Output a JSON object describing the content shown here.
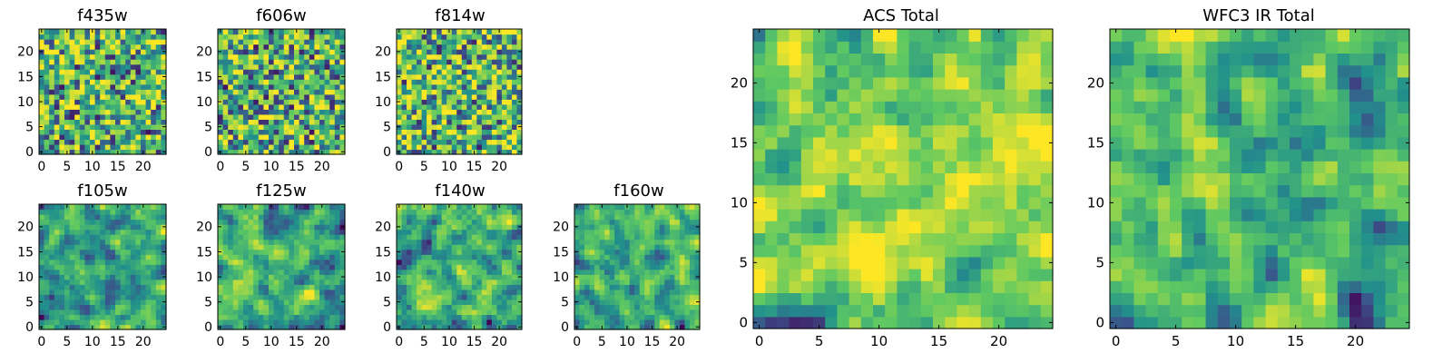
{
  "figure": {
    "background": "#ffffff",
    "colormap": "viridis",
    "colormap_stops": [
      "#440154",
      "#3b528b",
      "#21918c",
      "#5ec962",
      "#fde725"
    ]
  },
  "chart_data": [
    {
      "type": "heatmap",
      "title": "f435w",
      "grid": [
        25,
        25
      ],
      "xlim": [
        0,
        24
      ],
      "ylim": [
        0,
        24
      ],
      "xticks": [
        0,
        5,
        10,
        15,
        20
      ],
      "yticks": [
        0,
        5,
        10,
        15,
        20
      ],
      "tick_labels_x": [
        "0",
        "5",
        "10",
        "15",
        "20"
      ],
      "tick_labels_y": [
        "0",
        "5",
        "10",
        "15",
        "20"
      ],
      "pattern": "noisy, fine-grained",
      "seed": 11,
      "smooth": 0,
      "bias": 0.05
    },
    {
      "type": "heatmap",
      "title": "f606w",
      "grid": [
        25,
        25
      ],
      "xlim": [
        0,
        24
      ],
      "ylim": [
        0,
        24
      ],
      "xticks": [
        0,
        5,
        10,
        15,
        20
      ],
      "yticks": [
        0,
        5,
        10,
        15,
        20
      ],
      "tick_labels_x": [
        "0",
        "5",
        "10",
        "15",
        "20"
      ],
      "tick_labels_y": [
        "0",
        "5",
        "10",
        "15",
        "20"
      ],
      "pattern": "noisy, fine-grained",
      "seed": 23,
      "smooth": 0,
      "bias": 0.05
    },
    {
      "type": "heatmap",
      "title": "f814w",
      "grid": [
        25,
        25
      ],
      "xlim": [
        0,
        24
      ],
      "ylim": [
        0,
        24
      ],
      "xticks": [
        0,
        5,
        10,
        15,
        20
      ],
      "yticks": [
        0,
        5,
        10,
        15,
        20
      ],
      "tick_labels_x": [
        "0",
        "5",
        "10",
        "15",
        "20"
      ],
      "tick_labels_y": [
        "0",
        "5",
        "10",
        "15",
        "20"
      ],
      "pattern": "noisy, fine-grained",
      "seed": 37,
      "smooth": 0,
      "bias": 0.08
    },
    {
      "type": "heatmap",
      "title": "f105w",
      "grid": [
        25,
        25
      ],
      "xlim": [
        0,
        24
      ],
      "ylim": [
        0,
        24
      ],
      "xticks": [
        0,
        5,
        10,
        15,
        20
      ],
      "yticks": [
        0,
        5,
        10,
        15,
        20
      ],
      "tick_labels_x": [
        "0",
        "5",
        "10",
        "15",
        "20"
      ],
      "tick_labels_y": [
        "0",
        "5",
        "10",
        "15",
        "20"
      ],
      "pattern": "smooth blobs",
      "seed": 41,
      "smooth": 1,
      "bias": 0.0
    },
    {
      "type": "heatmap",
      "title": "f125w",
      "grid": [
        25,
        25
      ],
      "xlim": [
        0,
        24
      ],
      "ylim": [
        0,
        24
      ],
      "xticks": [
        0,
        5,
        10,
        15,
        20
      ],
      "yticks": [
        0,
        5,
        10,
        15,
        20
      ],
      "tick_labels_x": [
        "0",
        "5",
        "10",
        "15",
        "20"
      ],
      "tick_labels_y": [
        "0",
        "5",
        "10",
        "15",
        "20"
      ],
      "pattern": "smooth blobs",
      "seed": 53,
      "smooth": 1,
      "bias": 0.0
    },
    {
      "type": "heatmap",
      "title": "f140w",
      "grid": [
        25,
        25
      ],
      "xlim": [
        0,
        24
      ],
      "ylim": [
        0,
        24
      ],
      "xticks": [
        0,
        5,
        10,
        15,
        20
      ],
      "yticks": [
        0,
        5,
        10,
        15,
        20
      ],
      "tick_labels_x": [
        "0",
        "5",
        "10",
        "15",
        "20"
      ],
      "tick_labels_y": [
        "0",
        "5",
        "10",
        "15",
        "20"
      ],
      "pattern": "smooth blobs",
      "seed": 67,
      "smooth": 1,
      "bias": 0.0
    },
    {
      "type": "heatmap",
      "title": "f160w",
      "grid": [
        25,
        25
      ],
      "xlim": [
        0,
        24
      ],
      "ylim": [
        0,
        24
      ],
      "xticks": [
        0,
        5,
        10,
        15,
        20
      ],
      "yticks": [
        0,
        5,
        10,
        15,
        20
      ],
      "tick_labels_x": [
        "0",
        "5",
        "10",
        "15",
        "20"
      ],
      "tick_labels_y": [
        "0",
        "5",
        "10",
        "15",
        "20"
      ],
      "pattern": "smooth blobs",
      "seed": 79,
      "smooth": 1,
      "bias": 0.0
    },
    {
      "type": "heatmap",
      "title": "ACS Total",
      "grid": [
        25,
        25
      ],
      "xlim": [
        0,
        24
      ],
      "ylim": [
        0,
        24
      ],
      "xticks": [
        0,
        5,
        10,
        15,
        20
      ],
      "yticks": [
        0,
        5,
        10,
        15,
        20
      ],
      "tick_labels_x": [
        "0",
        "5",
        "10",
        "15",
        "20"
      ],
      "tick_labels_y": [
        "0",
        "5",
        "10",
        "15",
        "20"
      ],
      "pattern": "mostly green-yellow, bright center",
      "seed": 97,
      "smooth": 1,
      "bias": 0.12
    },
    {
      "type": "heatmap",
      "title": "WFC3 IR Total",
      "grid": [
        25,
        25
      ],
      "xlim": [
        0,
        24
      ],
      "ylim": [
        0,
        24
      ],
      "xticks": [
        0,
        5,
        10,
        15,
        20
      ],
      "yticks": [
        0,
        5,
        10,
        15,
        20
      ],
      "tick_labels_x": [
        "0",
        "5",
        "10",
        "15",
        "20"
      ],
      "tick_labels_y": [
        "0",
        "5",
        "10",
        "15",
        "20"
      ],
      "pattern": "green with bright center and left-edge",
      "seed": 131,
      "smooth": 1,
      "bias": 0.06
    }
  ]
}
